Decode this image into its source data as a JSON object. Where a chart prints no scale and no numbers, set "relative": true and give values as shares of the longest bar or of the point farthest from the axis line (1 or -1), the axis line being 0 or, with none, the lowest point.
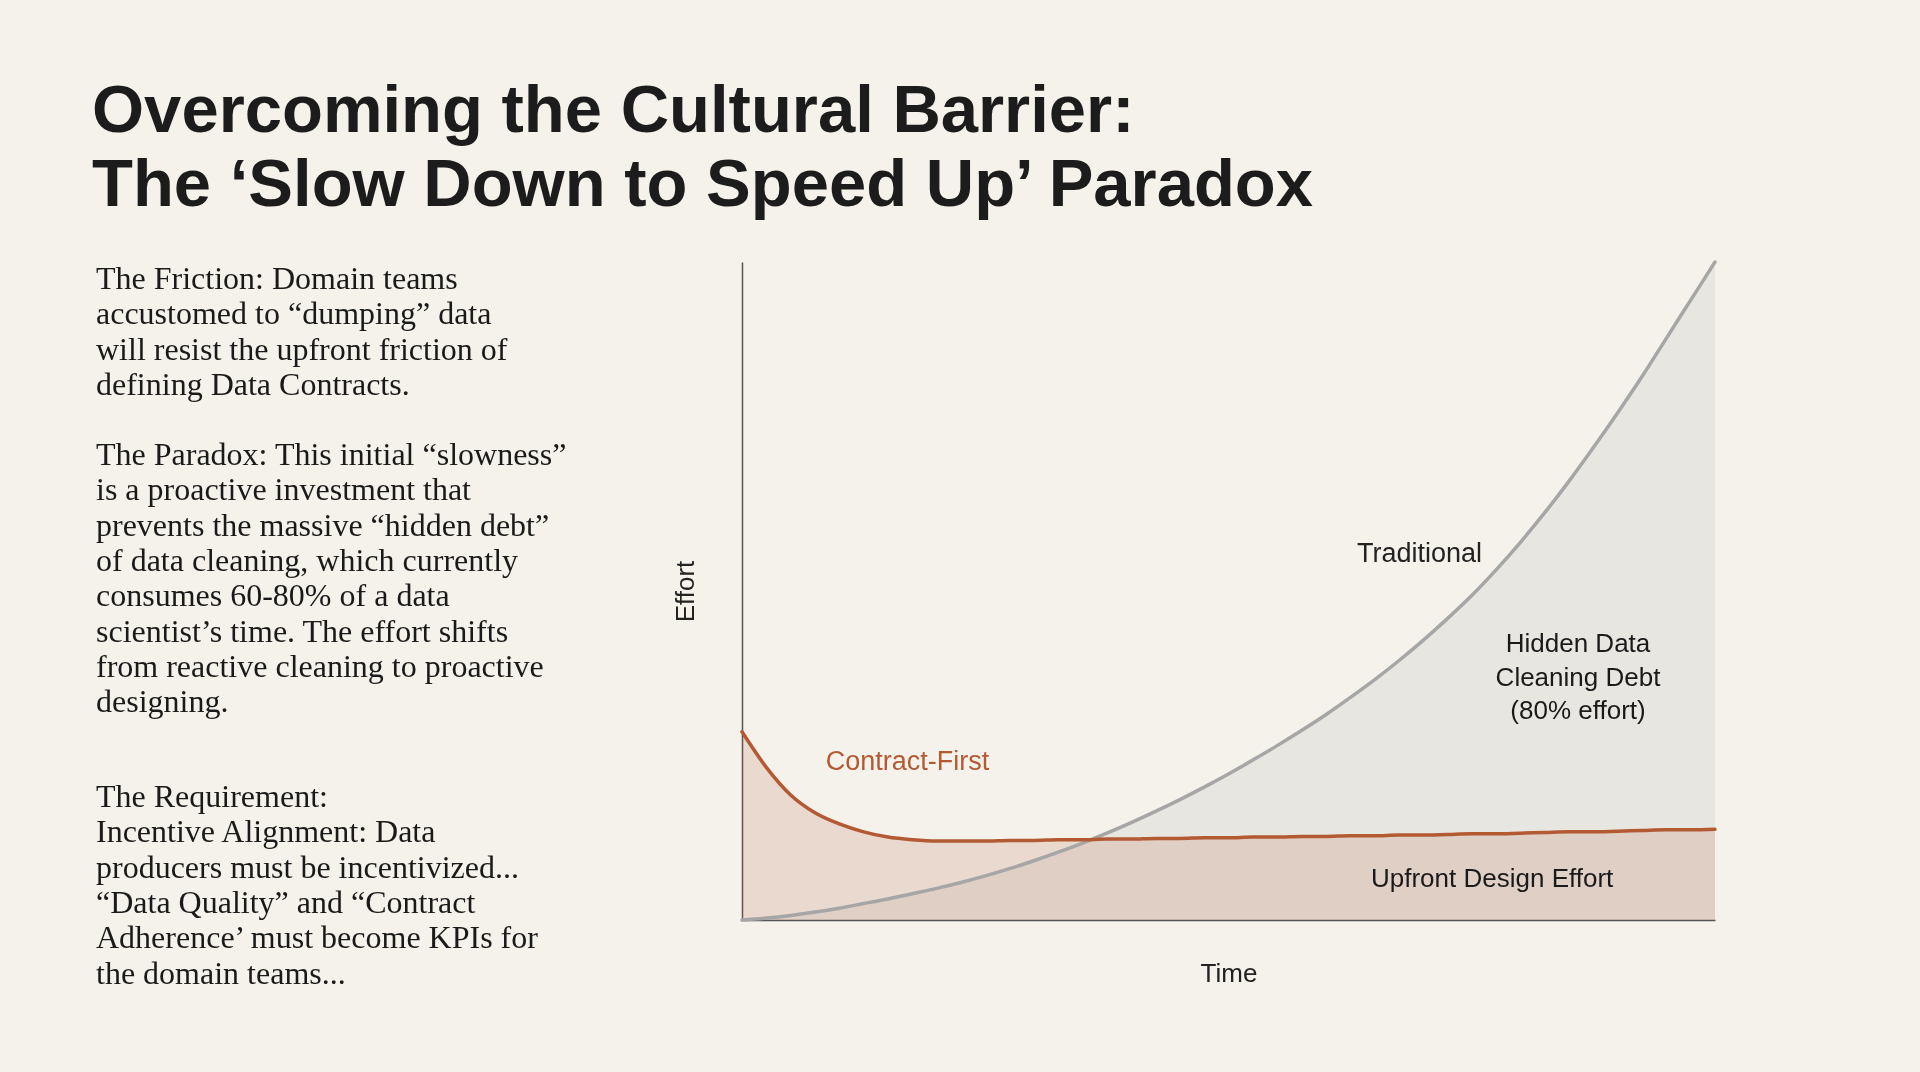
{
  "chart_data": {
    "type": "area",
    "title": "Overcoming the Cultural Barrier:\nThe ‘Slow Down to Speed Up’ Paradox",
    "xlabel": "Time",
    "ylabel": "Effort",
    "relative": true,
    "legend": false,
    "categories": [
      null,
      null,
      null,
      null,
      null,
      null,
      null,
      null,
      null,
      null,
      null,
      null,
      null,
      null,
      null,
      null,
      null,
      null,
      null,
      null,
      null,
      null,
      null,
      null,
      null,
      null,
      null,
      null,
      null,
      null,
      null,
      null,
      null,
      null,
      null,
      null,
      null,
      null,
      null,
      null,
      null
    ],
    "series": [
      {
        "name": "Traditional",
        "color": "#a6a6a6",
        "values": [
          0,
          0.003,
          0.007,
          0.012,
          0.018,
          0.025,
          0.032,
          0.04,
          0.048,
          0.057,
          0.067,
          0.078,
          0.09,
          0.103,
          0.117,
          0.132,
          0.148,
          0.165,
          0.183,
          0.202,
          0.222,
          0.243,
          0.265,
          0.288,
          0.312,
          0.338,
          0.365,
          0.394,
          0.425,
          0.458,
          0.493,
          0.532,
          0.574,
          0.619,
          0.667,
          0.718,
          0.771,
          0.826,
          0.884,
          0.942,
          1
        ]
      },
      {
        "name": "Contract-First",
        "color": "#b35a33",
        "values": [
          0.286,
          0.232,
          0.19,
          0.163,
          0.146,
          0.134,
          0.126,
          0.122,
          0.12,
          0.12,
          0.12,
          0.121,
          0.121,
          0.122,
          0.122,
          0.123,
          0.123,
          0.124,
          0.124,
          0.125,
          0.125,
          0.126,
          0.126,
          0.127,
          0.127,
          0.128,
          0.128,
          0.129,
          0.129,
          0.13,
          0.131,
          0.131,
          0.132,
          0.133,
          0.134,
          0.134,
          0.135,
          0.136,
          0.137,
          0.137,
          0.138
        ]
      }
    ],
    "annotations": [
      "The Friction: Domain teams\naccustomed to “dumping” data\nwill resist the upfront friction of\ndefining Data Contracts.",
      "The Paradox: This initial “slowness”\nis a proactive investment that\nprevents the massive “hidden debt”\nof data cleaning, which currently\nconsumes 60-80% of a data\nscientist’s time. The effort shifts\nfrom reactive cleaning to proactive\ndesigning.",
      "The Requirement:\nIncentive Alignment: Data\nproducers must be incentivized...\n“Data Quality” and “Contract\nAdherence’ must become KPIs for\nthe domain teams...",
      "Hidden Data\nCleaning Debt\n(80% effort)",
      "Upfront Design Effort"
    ]
  }
}
